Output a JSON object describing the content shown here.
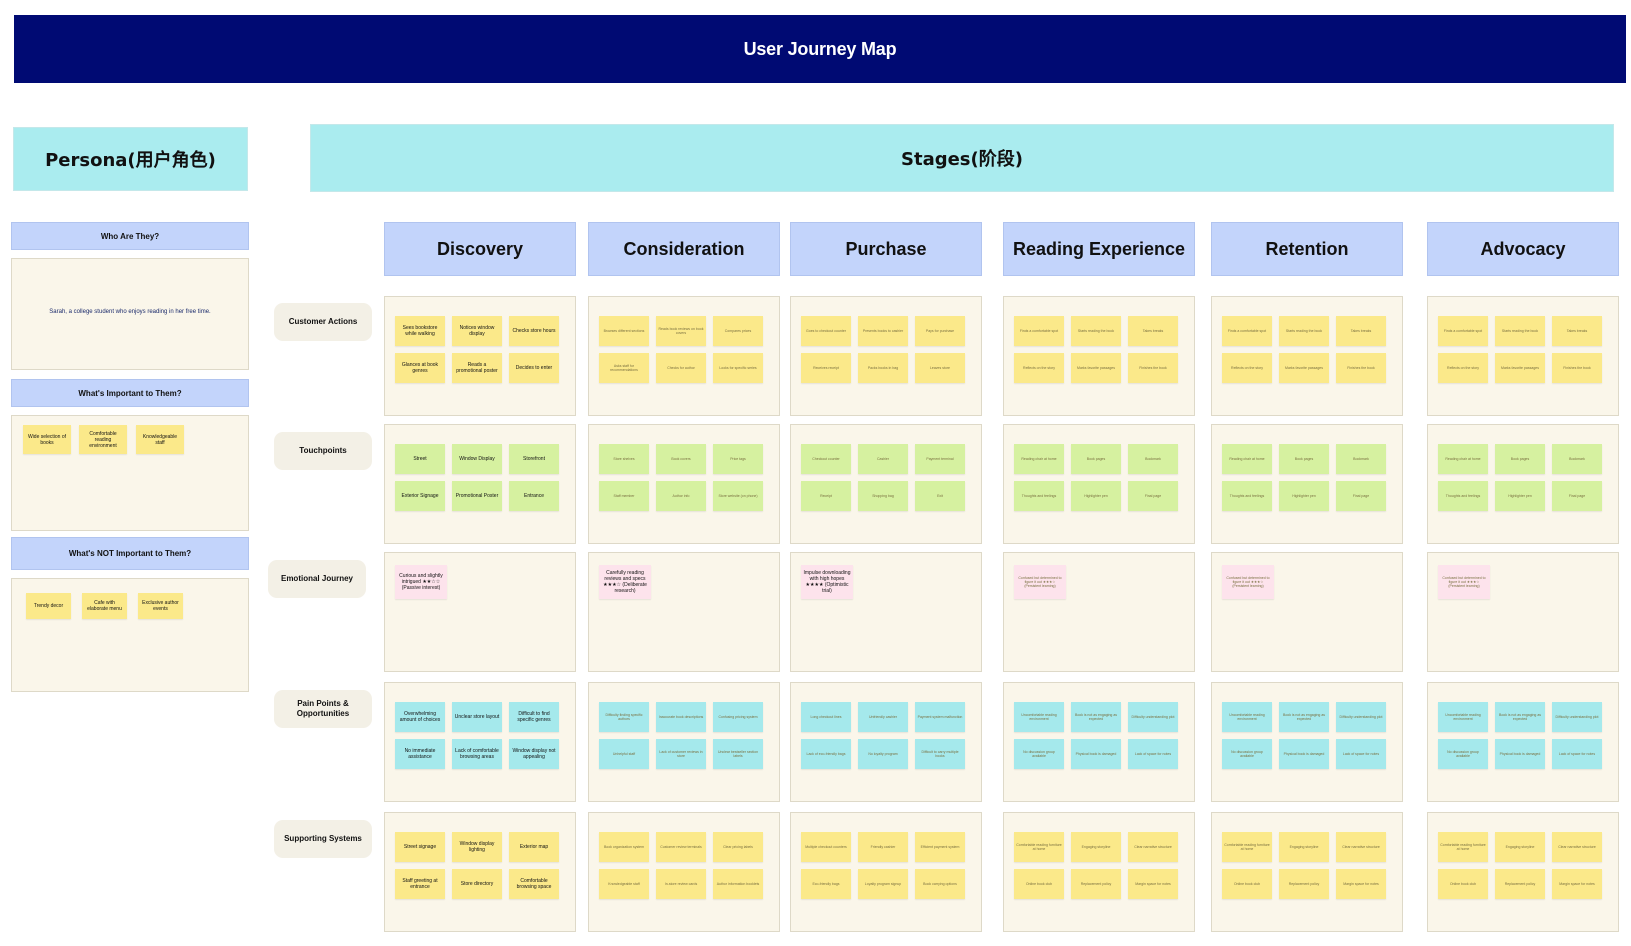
{
  "title": "User Journey Map",
  "persona_header": "Persona(用户角色)",
  "stages_header": "Stages(阶段)",
  "persona": {
    "who_title": "Who Are They?",
    "who_text": "Sarah, a college student who enjoys reading in her free time.",
    "important_title": "What's Important to Them?",
    "important_items": [
      "Wide selection of books",
      "Comfortable reading environment",
      "Knowledgeable staff"
    ],
    "not_important_title": "What's NOT Important to Them?",
    "not_important_items": [
      "Trendy decor",
      "Cafe with elaborate menu",
      "Exclusive author events"
    ]
  },
  "stages": [
    "Discovery",
    "Consideration",
    "Purchase",
    "Reading Experience",
    "Retention",
    "Advocacy"
  ],
  "rows": [
    "Customer Actions",
    "Touchpoints",
    "Emotional Journey",
    "Pain Points & Opportunities",
    "Supporting Systems"
  ],
  "cells": {
    "customer_actions": [
      [
        "Sees bookstore while walking",
        "Notices window display",
        "Checks store hours",
        "Glances at book genres",
        "Reads a promotional poster",
        "Decides to enter"
      ],
      [
        "Browses different sections",
        "Reads book reviews on book covers",
        "Compares prices",
        "Asks staff for recommendations",
        "Checks for author",
        "Looks for specific series"
      ],
      [
        "Goes to checkout counter",
        "Presents books to cashier",
        "Pays for purchase",
        "Receives receipt",
        "Packs books in bag",
        "Leaves store"
      ],
      [
        "Finds a comfortable spot",
        "Starts reading the book",
        "Takes breaks",
        "Reflects on the story",
        "Marks favorite passages",
        "Finishes the book"
      ],
      [
        "Finds a comfortable spot",
        "Starts reading the book",
        "Takes breaks",
        "Reflects on the story",
        "Marks favorite passages",
        "Finishes the book"
      ],
      [
        "Finds a comfortable spot",
        "Starts reading the book",
        "Takes breaks",
        "Reflects on the story",
        "Marks favorite passages",
        "Finishes the book"
      ]
    ],
    "touchpoints": [
      [
        "Street",
        "Window Display",
        "Storefront",
        "Exterior Signage",
        "Promotional Poster",
        "Entrance"
      ],
      [
        "Store shelves",
        "Book covers",
        "Price tags",
        "Staff member",
        "Author info",
        "Store website (on phone)"
      ],
      [
        "Checkout counter",
        "Cashier",
        "Payment terminal",
        "Receipt",
        "Shopping bag",
        "Exit"
      ],
      [
        "Reading chair at home",
        "Book pages",
        "Bookmark",
        "Thoughts and feelings",
        "Highlighter pen",
        "Final page"
      ],
      [
        "Reading chair at home",
        "Book pages",
        "Bookmark",
        "Thoughts and feelings",
        "Highlighter pen",
        "Final page"
      ],
      [
        "Reading chair at home",
        "Book pages",
        "Bookmark",
        "Thoughts and feelings",
        "Highlighter pen",
        "Final page"
      ]
    ],
    "emotional_journey": [
      "Curious and slightly intrigued ★★☆☆ (Passive interest)",
      "Carefully reading reviews and specs ★★★☆ (Deliberate research)",
      "Impulse downloading with high hopes ★★★★ (Optimistic trial)",
      "Confused but determined to figure it out ★★★☆ (Persistent learning)",
      "Confused but determined to figure it out ★★★☆ (Persistent learning)",
      "Confused but determined to figure it out ★★★☆ (Persistent learning)"
    ],
    "pain_points": [
      [
        "Overwhelming amount of choices",
        "Unclear store layout",
        "Difficult to find specific genres",
        "No immediate assistance",
        "Lack of comfortable browsing areas",
        "Window display not appealing"
      ],
      [
        "Difficulty finding specific authors",
        "Inaccurate book descriptions",
        "Confusing pricing system",
        "Unhelpful staff",
        "Lack of customer reviews in store",
        "Unclear bestseller section labels"
      ],
      [
        "Long checkout lines",
        "Unfriendly cashier",
        "Payment system malfunction",
        "Lack of eco-friendly bags",
        "No loyalty program",
        "Difficult to carry multiple books"
      ],
      [
        "Uncomfortable reading environment",
        "Book is not as engaging as expected",
        "Difficulty understanding plot",
        "No discussion group available",
        "Physical book is damaged",
        "Lack of space for notes"
      ],
      [
        "Uncomfortable reading environment",
        "Book is not as engaging as expected",
        "Difficulty understanding plot",
        "No discussion group available",
        "Physical book is damaged",
        "Lack of space for notes"
      ],
      [
        "Uncomfortable reading environment",
        "Book is not as engaging as expected",
        "Difficulty understanding plot",
        "No discussion group available",
        "Physical book is damaged",
        "Lack of space for notes"
      ]
    ],
    "supporting_systems": [
      [
        "Street signage",
        "Window display lighting",
        "Exterior map",
        "Staff greeting at entrance",
        "Store directory",
        "Comfortable browsing space"
      ],
      [
        "Book organization system",
        "Customer review terminals",
        "Clear pricing labels",
        "Knowledgeable staff",
        "In-store review cards",
        "Author information booklets"
      ],
      [
        "Multiple checkout counters",
        "Friendly cashier",
        "Efficient payment system",
        "Eco-friendly bags",
        "Loyalty program signup",
        "Book carrying options"
      ],
      [
        "Comfortable reading furniture at home",
        "Engaging storyline",
        "Clear narrative structure",
        "Online book club",
        "Replacement policy",
        "Margin space for notes"
      ],
      [
        "Comfortable reading furniture at home",
        "Engaging storyline",
        "Clear narrative structure",
        "Online book club",
        "Replacement policy",
        "Margin space for notes"
      ],
      [
        "Comfortable reading furniture at home",
        "Engaging storyline",
        "Clear narrative structure",
        "Online book club",
        "Replacement policy",
        "Margin space for notes"
      ]
    ]
  },
  "colors": {
    "banner": "#000a73",
    "header_teal": "#aaecef",
    "stage_header_blue": "#c3d4fb",
    "cell_bg": "#faf6ea",
    "note_yellow": "#fbe98a",
    "note_green": "#d6f1a0",
    "note_cyan": "#a5e9ec",
    "note_pink": "#fde3ec"
  }
}
